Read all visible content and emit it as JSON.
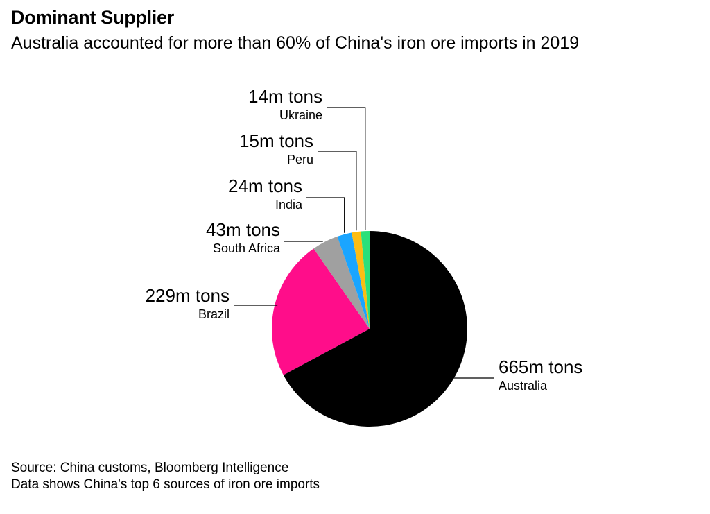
{
  "header": {
    "title": "Dominant Supplier",
    "subtitle": "Australia accounted for more than 60% of China's iron ore imports in 2019"
  },
  "footer": {
    "source": "Source: China customs, Bloomberg Intelligence",
    "note": "Data shows China's top 6 sources of iron ore imports"
  },
  "chart_data": {
    "type": "pie",
    "title": "Dominant Supplier",
    "subtitle": "Australia accounted for more than 60% of China's iron ore imports in 2019",
    "unit": "m tons",
    "slices": [
      {
        "name": "Australia",
        "value": 665,
        "value_label": "665m tons",
        "color": "#000000"
      },
      {
        "name": "Brazil",
        "value": 229,
        "value_label": "229m tons",
        "color": "#ff0d8a"
      },
      {
        "name": "South Africa",
        "value": 43,
        "value_label": "43m tons",
        "color": "#a0a0a0"
      },
      {
        "name": "India",
        "value": 24,
        "value_label": "24m tons",
        "color": "#1aa5ff"
      },
      {
        "name": "Peru",
        "value": 15,
        "value_label": "15m tons",
        "color": "#fbbd14"
      },
      {
        "name": "Ukraine",
        "value": 14,
        "value_label": "14m tons",
        "color": "#2ae07a"
      }
    ]
  }
}
